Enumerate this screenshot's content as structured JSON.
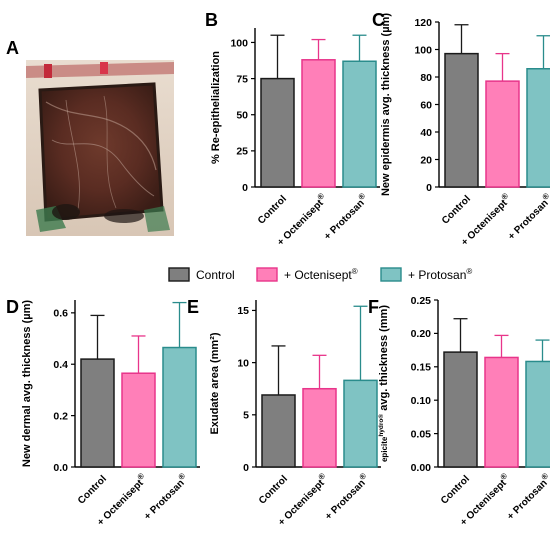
{
  "panel_labels": [
    "A",
    "B",
    "C",
    "D",
    "E",
    "F"
  ],
  "legend": {
    "items": [
      {
        "label": "Control",
        "sup": "",
        "fill": "#7f7f7f"
      },
      {
        "label": "+ Octenisept",
        "sup": "®",
        "fill": "#ff7fb8"
      },
      {
        "label": "+ Protosan",
        "sup": "®",
        "fill": "#7fc3c3"
      }
    ]
  },
  "colors": {
    "control": "#7f7f7f",
    "octenisept": "#ff7fb8",
    "protosan": "#7fc3c3",
    "edge_control": "#1a1a1a",
    "edge_octenisept": "#e8358a",
    "edge_protosan": "#2a8c8c"
  },
  "photo": {
    "panel": "A"
  },
  "chart_data": [
    {
      "panel": "B",
      "type": "bar",
      "categories": [
        "Control",
        "+ Octenisept",
        "+ Protosan"
      ],
      "category_sup": [
        "",
        "®",
        "®"
      ],
      "values": [
        75,
        88,
        87
      ],
      "errors": [
        30,
        14,
        18
      ],
      "ylabel": "% Re-epithelialization",
      "ylabel_sup": "",
      "ylabel_suffix": "",
      "ylim": [
        0,
        110
      ],
      "yticks": [
        0,
        25,
        50,
        75,
        100
      ],
      "ytick_labels": [
        "0",
        "25",
        "50",
        "75",
        "100"
      ]
    },
    {
      "panel": "C",
      "type": "bar",
      "categories": [
        "Control",
        "+ Octenisept",
        "+ Protosan"
      ],
      "category_sup": [
        "",
        "®",
        "®"
      ],
      "values": [
        97,
        77,
        86
      ],
      "errors": [
        21,
        20,
        24
      ],
      "ylabel": "New epidermis avg. thickness (µm)",
      "ylabel_sup": "",
      "ylabel_suffix": "",
      "ylim": [
        0,
        120
      ],
      "yticks": [
        0,
        20,
        40,
        60,
        80,
        100,
        120
      ],
      "ytick_labels": [
        "0",
        "20",
        "40",
        "60",
        "80",
        "100",
        "120"
      ]
    },
    {
      "panel": "D",
      "type": "bar",
      "categories": [
        "Control",
        "+ Octenisept",
        "+ Protosan"
      ],
      "category_sup": [
        "",
        "®",
        "®"
      ],
      "values": [
        0.42,
        0.365,
        0.465
      ],
      "errors": [
        0.17,
        0.145,
        0.175
      ],
      "ylabel": "New dermal avg. thickness (µm)",
      "ylabel_sup": "",
      "ylabel_suffix": "",
      "ylim": [
        0,
        0.65
      ],
      "yticks": [
        0,
        0.2,
        0.4,
        0.6
      ],
      "ytick_labels": [
        "0.0",
        "0.2",
        "0.4",
        "0.6"
      ]
    },
    {
      "panel": "E",
      "type": "bar",
      "categories": [
        "Control",
        "+ Octenisept",
        "+ Protosan"
      ],
      "category_sup": [
        "",
        "®",
        "®"
      ],
      "values": [
        6.9,
        7.5,
        8.3
      ],
      "errors": [
        4.7,
        3.2,
        7.1
      ],
      "ylabel": "Exudate area (mm²)",
      "ylabel_sup": "",
      "ylabel_suffix": "",
      "ylim": [
        0,
        16
      ],
      "yticks": [
        0,
        5,
        10,
        15
      ],
      "ytick_labels": [
        "0",
        "5",
        "10",
        "15"
      ]
    },
    {
      "panel": "F",
      "type": "bar",
      "categories": [
        "Control",
        "+ Octenisept",
        "+ Protosan"
      ],
      "category_sup": [
        "",
        "®",
        "®"
      ],
      "values": [
        0.172,
        0.164,
        0.158
      ],
      "errors": [
        0.05,
        0.033,
        0.032
      ],
      "ylabel": "epicite",
      "ylabel_sup": "hydro®",
      "ylabel_suffix": " avg. thickness (mm)",
      "ylim": [
        0,
        0.25
      ],
      "yticks": [
        0,
        0.05,
        0.1,
        0.15,
        0.2,
        0.25
      ],
      "ytick_labels": [
        "0.00",
        "0.05",
        "0.10",
        "0.15",
        "0.20",
        "0.25"
      ]
    }
  ]
}
